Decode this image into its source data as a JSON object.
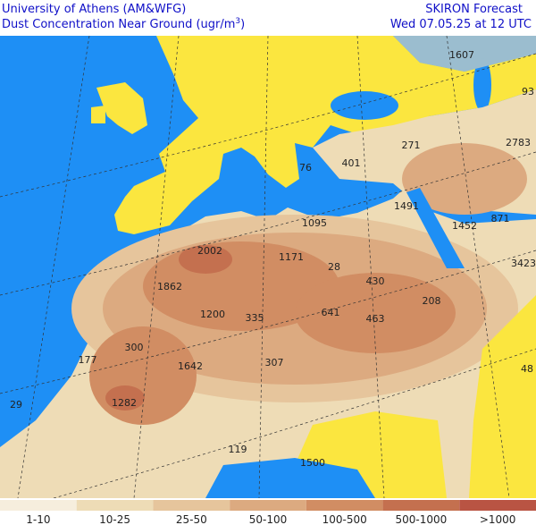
{
  "header": {
    "institution": "University of Athens (AM&WFG)",
    "title_main": "Dust Concentration Near Ground (ugr/m",
    "title_exponent": "3",
    "title_end": ")",
    "model": "SKIRON Forecast",
    "valid_time": "Wed 07.05.25 at 12 UTC"
  },
  "map_labels": [
    "1607",
    "93",
    "271",
    "2783",
    "401",
    "76",
    "1491",
    "1095",
    "1452",
    "871",
    "2002",
    "1171",
    "28",
    "3423",
    "1862",
    "430",
    "208",
    "1200",
    "335",
    "641",
    "463",
    "300",
    "177",
    "307",
    "1642",
    "48",
    "1282",
    "29",
    "119",
    "1500"
  ],
  "legend": [
    {
      "label": "1-10",
      "color": "#f6eedd"
    },
    {
      "label": "10-25",
      "color": "#eedcb6"
    },
    {
      "label": "25-50",
      "color": "#e6c59c"
    },
    {
      "label": "50-100",
      "color": "#dcaa80"
    },
    {
      "label": "100-500",
      "color": "#d18d63"
    },
    {
      "label": "500-1000",
      "color": "#c4704f"
    },
    {
      "label": ">1000",
      "color": "#b95443"
    }
  ]
}
